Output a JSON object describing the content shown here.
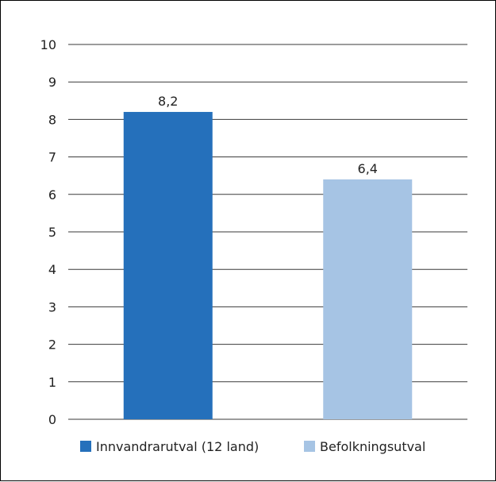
{
  "chart_data": {
    "type": "bar",
    "categories": [
      "Innvandrarutval (12 land)",
      "Befolkningsutval"
    ],
    "values": [
      8.2,
      6.4
    ],
    "data_labels": [
      "8,2",
      "6,4"
    ],
    "colors": [
      "#2570BB",
      "#A6C4E4"
    ],
    "ylim": [
      0,
      10
    ],
    "yticks": [
      0,
      1,
      2,
      3,
      4,
      5,
      6,
      7,
      8,
      9,
      10
    ],
    "grid": true,
    "legend": {
      "position": "bottom",
      "entries": [
        "Innvandrarutval (12 land)",
        "Befolkningsutval"
      ]
    }
  }
}
